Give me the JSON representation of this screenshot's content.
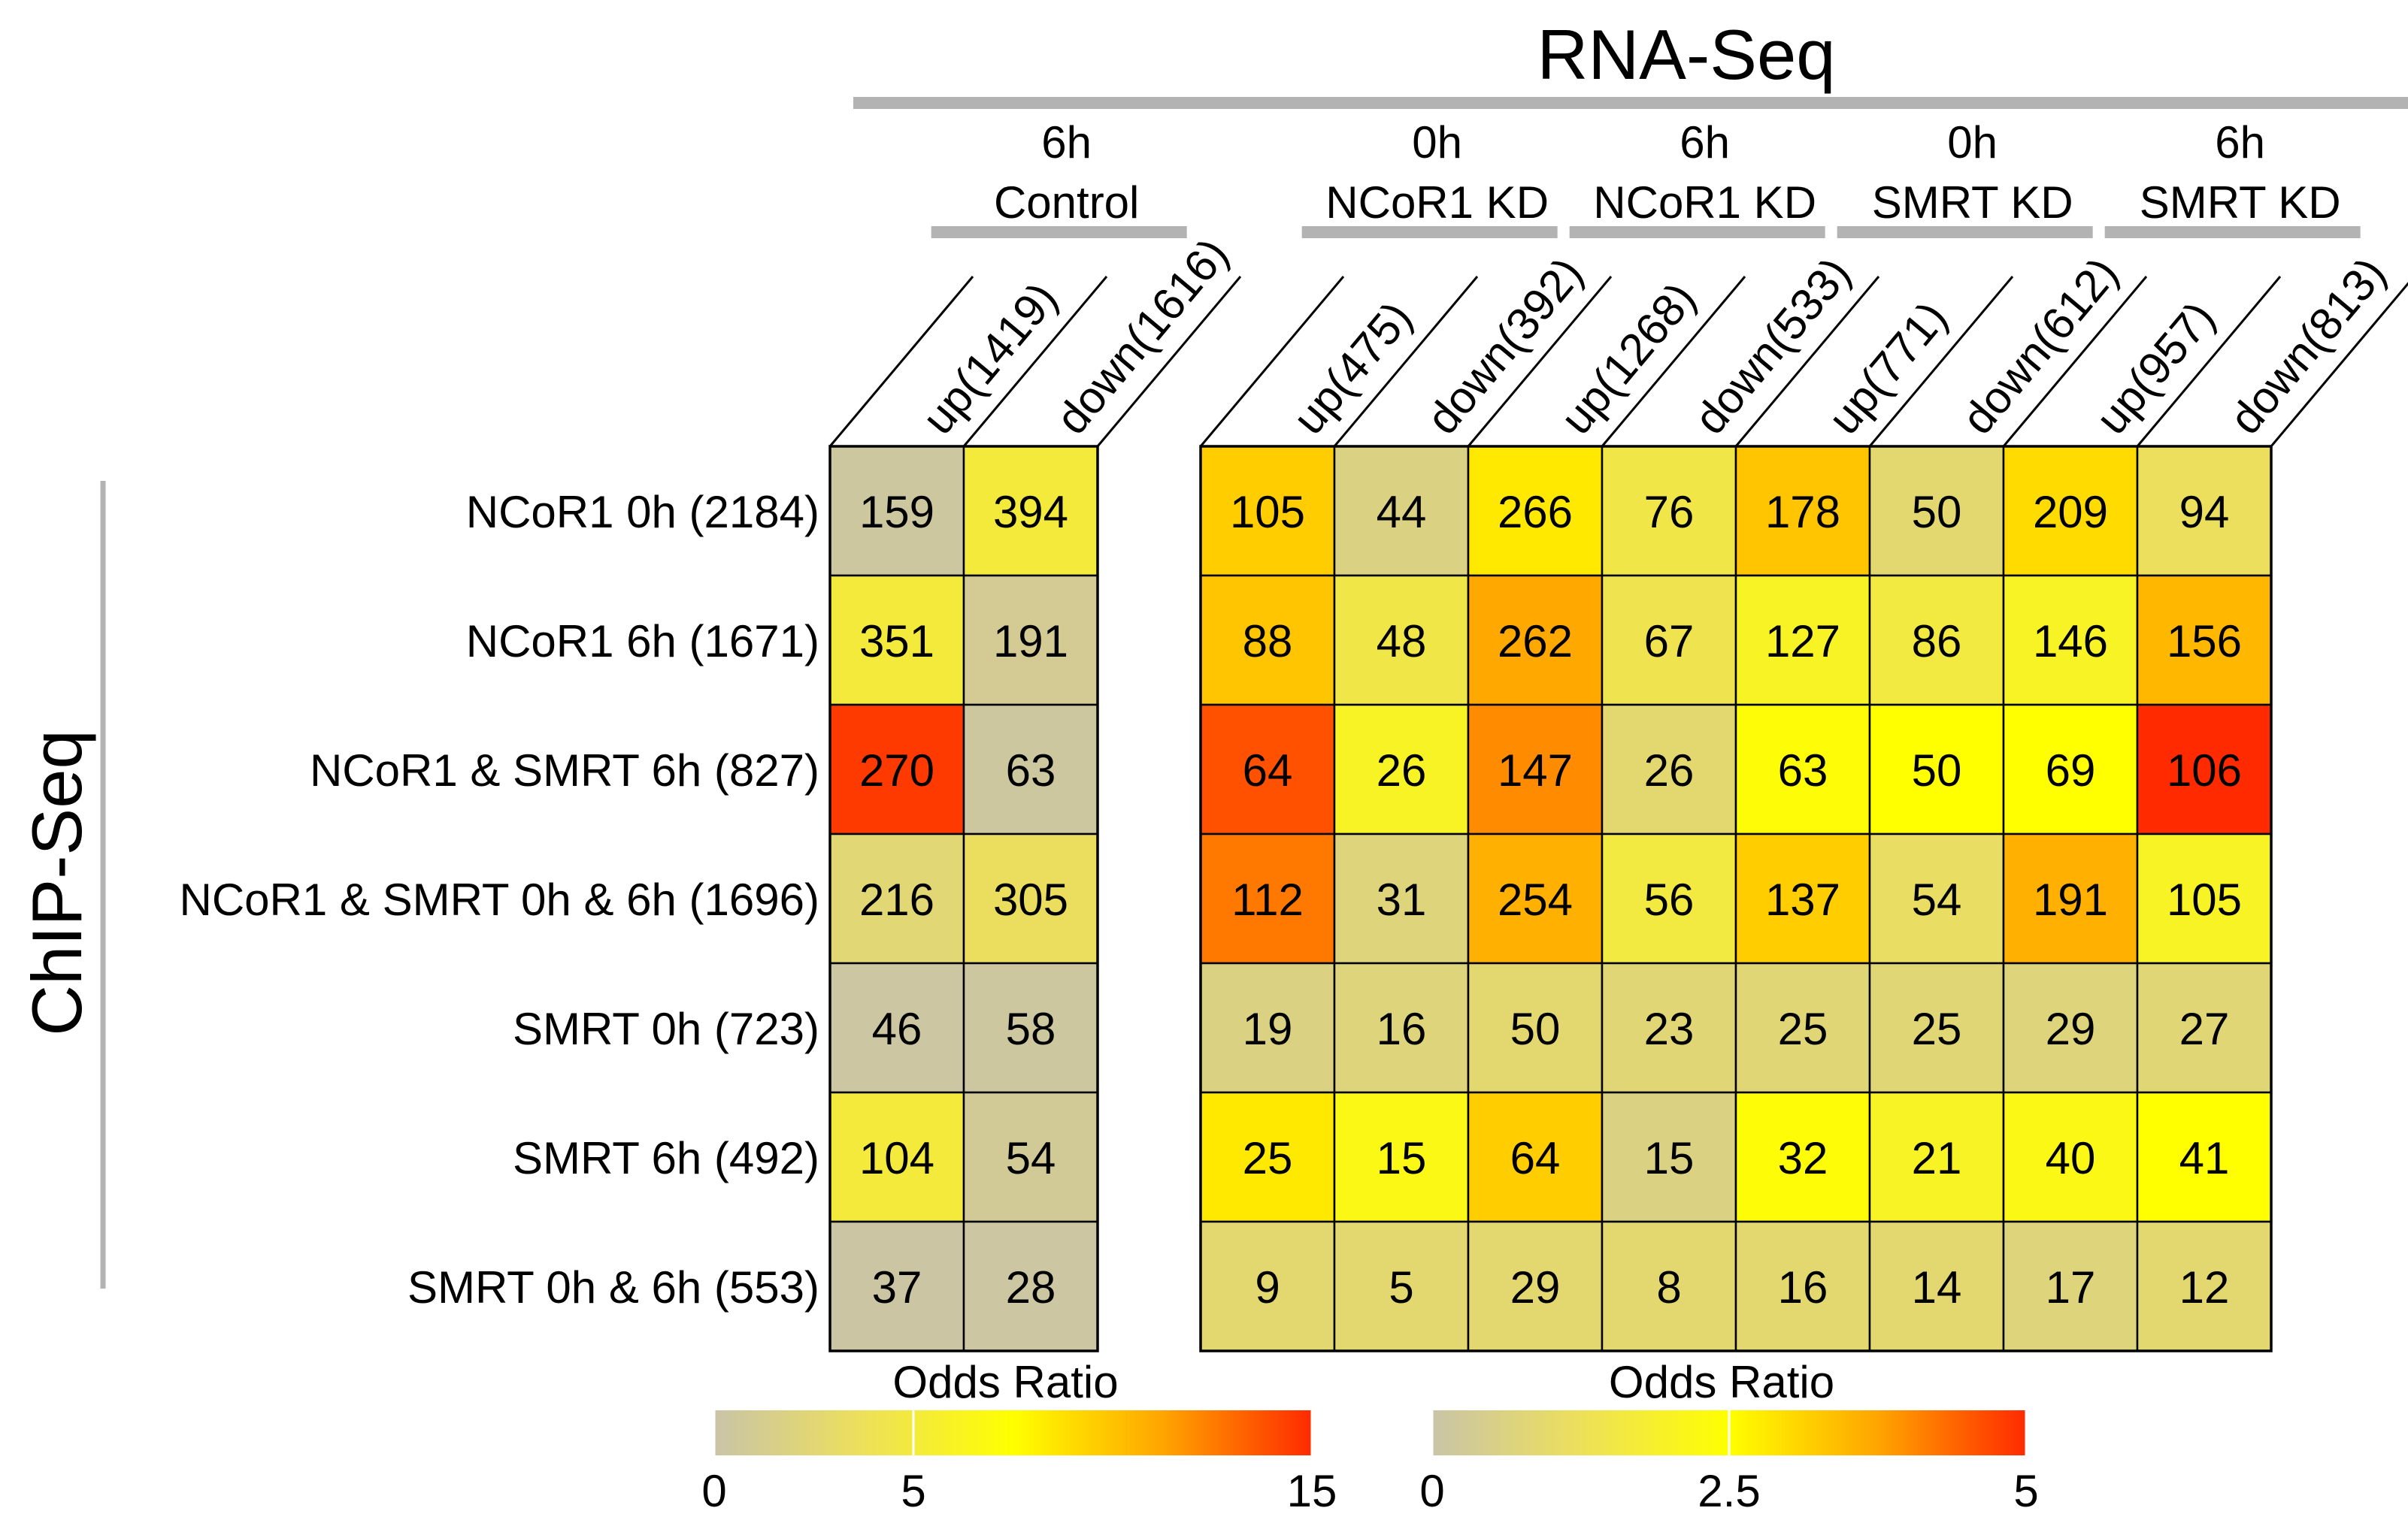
{
  "chart_data": {
    "type": "heatmap",
    "title": "",
    "column_axis_label": "RNA-Seq",
    "row_axis_label": "ChIP-Seq",
    "rows": [
      "NCoR1 0h (2184)",
      "NCoR1 6h (1671)",
      "NCoR1 & SMRT 6h (827)",
      "NCoR1 & SMRT 0h & 6h (1696)",
      "SMRT 0h (723)",
      "SMRT 6h (492)",
      "SMRT 0h & 6h (553)"
    ],
    "panels": [
      {
        "groups": [
          {
            "line1": "6h",
            "line2": "Control"
          }
        ],
        "columns": [
          "up(1419)",
          "down(1616)"
        ],
        "values": [
          [
            159,
            394
          ],
          [
            351,
            191
          ],
          [
            270,
            63
          ],
          [
            216,
            305
          ],
          [
            46,
            58
          ],
          [
            104,
            54
          ],
          [
            37,
            28
          ]
        ],
        "odds_ratio_estimate": [
          [
            0.4,
            5.0
          ],
          [
            5.0,
            1.0
          ],
          [
            14.5,
            0.4
          ],
          [
            2.5,
            3.5
          ],
          [
            0.3,
            0.4
          ],
          [
            5.0,
            0.8
          ],
          [
            0.2,
            0.3
          ]
        ],
        "legend": {
          "title": "Odds Ratio",
          "min": 0,
          "max": 15,
          "ticks": [
            "0",
            "5",
            "15"
          ],
          "tick_values": [
            0,
            5,
            15
          ],
          "colors": [
            "#c9c4a8",
            "#ede05a",
            "#ffff00",
            "#ffa500",
            "#ff2a00"
          ]
        }
      },
      {
        "groups": [
          {
            "line1": "0h",
            "line2": "NCoR1 KD"
          },
          {
            "line1": "6h",
            "line2": "NCoR1 KD"
          },
          {
            "line1": "0h",
            "line2": "SMRT KD"
          },
          {
            "line1": "6h",
            "line2": "SMRT KD"
          }
        ],
        "columns": [
          "up(475)",
          "down(392)",
          "up(1268)",
          "down(533)",
          "up(771)",
          "down(612)",
          "up(957)",
          "down(813)"
        ],
        "values": [
          [
            105,
            44,
            266,
            76,
            178,
            50,
            209,
            94
          ],
          [
            88,
            48,
            262,
            67,
            127,
            86,
            146,
            156
          ],
          [
            64,
            26,
            147,
            26,
            63,
            50,
            69,
            106
          ],
          [
            112,
            31,
            254,
            56,
            137,
            54,
            191,
            105
          ],
          [
            19,
            16,
            50,
            23,
            25,
            25,
            29,
            27
          ],
          [
            25,
            15,
            64,
            15,
            32,
            21,
            40,
            41
          ],
          [
            9,
            5,
            29,
            8,
            16,
            14,
            17,
            12
          ]
        ],
        "odds_ratio_estimate": [
          [
            3.2,
            0.6,
            2.8,
            1.5,
            3.3,
            0.9,
            3.0,
            1.2
          ],
          [
            3.3,
            1.5,
            3.7,
            1.4,
            2.0,
            1.6,
            2.0,
            3.5
          ],
          [
            4.6,
            2.0,
            4.0,
            0.9,
            2.4,
            2.5,
            2.5,
            5.0
          ],
          [
            4.2,
            0.7,
            3.6,
            1.6,
            3.2,
            1.1,
            3.6,
            2.0
          ],
          [
            0.6,
            0.7,
            0.9,
            0.8,
            0.8,
            0.8,
            0.7,
            0.8
          ],
          [
            2.8,
            2.2,
            3.2,
            0.6,
            2.4,
            2.0,
            2.2,
            2.5
          ],
          [
            0.9,
            0.9,
            0.9,
            0.9,
            0.9,
            0.9,
            0.7,
            0.9
          ]
        ],
        "legend": {
          "title": "Odds Ratio",
          "min": 0,
          "max": 5,
          "ticks": [
            "0",
            "2.5",
            "5"
          ],
          "tick_values": [
            0,
            2.5,
            5
          ],
          "colors": [
            "#c9c4a8",
            "#ede05a",
            "#ffff00",
            "#ffa500",
            "#ff2a00"
          ]
        }
      }
    ],
    "grid": true,
    "legend_placement": "bottom"
  }
}
